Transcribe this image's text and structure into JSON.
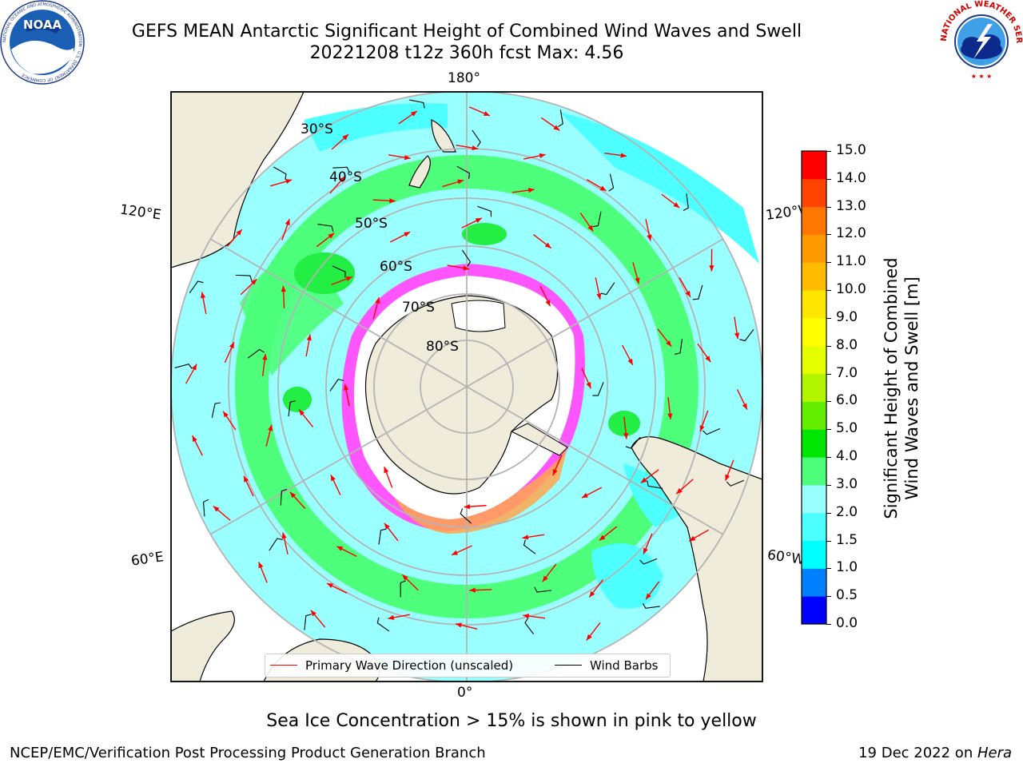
{
  "header": {
    "title_line1": "GEFS MEAN Antarctic Significant Height of Combined Wind Waves and Swell",
    "title_line2": "20221208 t12z 360h fcst   Max: 4.56"
  },
  "logos": {
    "noaa": {
      "text": "NOAA",
      "ring_text": "NATIONAL OCEANIC AND ATMOSPHERIC ADMINISTRATION · U.S. DEPARTMENT OF COMMERCE"
    },
    "nws": {
      "ring_text": "NATIONAL WEATHER SERVICE"
    }
  },
  "map": {
    "projection": "south-polar-stereographic",
    "meridian_labels": {
      "top": "180°",
      "left_upper": "120°E",
      "right_upper": "120°W",
      "left_lower": "60°E",
      "right_lower": "60°W",
      "bottom": "0°"
    },
    "parallel_labels": [
      "30°S",
      "40°S",
      "50°S",
      "60°S",
      "70°S",
      "80°S"
    ],
    "colors": {
      "ocean_low": "#99ffff",
      "ocean_mid": "#4dffff",
      "ocean_high": "#4dff7a",
      "land": "#efecdb",
      "ice": "#ffffff",
      "ice_edge": "#ff55ff",
      "ice_dense": "#ffa64d",
      "grid": "#b4b4b4",
      "wave_arrow": "#ff0000",
      "wind_barb": "#000000"
    }
  },
  "legend": {
    "items": [
      {
        "label": "Primary Wave Direction (unscaled)",
        "color": "#ff0000"
      },
      {
        "label": "Wind Barbs",
        "color": "#000000"
      }
    ]
  },
  "colorbar": {
    "label_line1": "Significant Height of Combined",
    "label_line2": "Wind Waves and Swell [m]",
    "bounds": [
      "0.0",
      "0.5",
      "1.0",
      "1.5",
      "2.0",
      "3.0",
      "4.0",
      "5.0",
      "6.0",
      "7.0",
      "8.0",
      "9.0",
      "10.0",
      "11.0",
      "12.0",
      "13.0",
      "14.0",
      "15.0"
    ],
    "colors": [
      "#0000ff",
      "#0080ff",
      "#00ffff",
      "#4dffff",
      "#99ffff",
      "#4dff7a",
      "#00e600",
      "#66ee00",
      "#b3f500",
      "#e6ff00",
      "#ffff00",
      "#ffe600",
      "#ffbb00",
      "#ff9900",
      "#ff7700",
      "#ff4400",
      "#ff0000"
    ]
  },
  "note": "Sea Ice Concentration > 15% is shown in pink to yellow",
  "footer": {
    "left": "NCEP/EMC/Verification Post Processing Product Generation Branch",
    "right_prefix": "19 Dec 2022 on ",
    "right_machine": "Hera"
  }
}
